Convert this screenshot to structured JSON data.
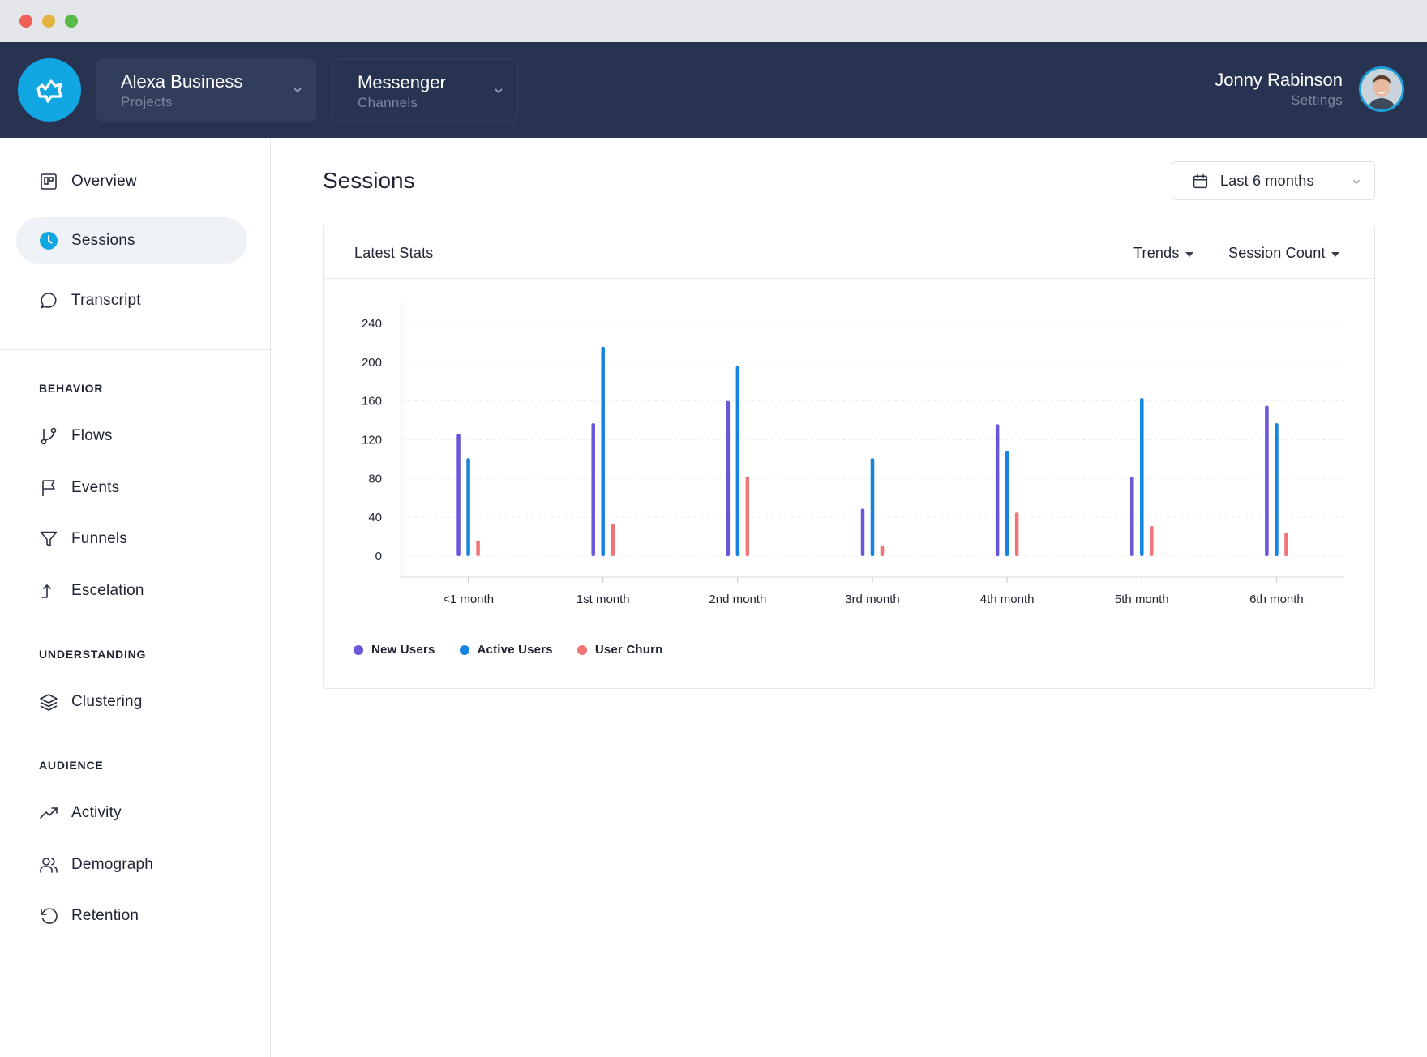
{
  "header": {
    "project": {
      "title": "Alexa Business",
      "subtitle": "Projects"
    },
    "channel": {
      "title": "Messenger",
      "subtitle": "Channels"
    },
    "user": {
      "name": "Jonny Rabinson",
      "subtitle": "Settings"
    }
  },
  "sidebar": {
    "top_items": [
      {
        "label": "Overview",
        "icon": "overview-icon"
      },
      {
        "label": "Sessions",
        "icon": "clock-icon",
        "active": true
      },
      {
        "label": "Transcript",
        "icon": "chat-bubble-icon"
      }
    ],
    "sections": [
      {
        "title": "BEHAVIOR",
        "items": [
          {
            "label": "Flows",
            "icon": "branch-icon"
          },
          {
            "label": "Events",
            "icon": "flag-icon"
          },
          {
            "label": "Funnels",
            "icon": "funnel-icon"
          },
          {
            "label": "Escelation",
            "icon": "escalation-arrow-icon"
          }
        ]
      },
      {
        "title": "UNDERSTANDING",
        "items": [
          {
            "label": "Clustering",
            "icon": "layers-icon"
          }
        ]
      },
      {
        "title": "AUDIENCE",
        "items": [
          {
            "label": "Activity",
            "icon": "trending-up-icon"
          },
          {
            "label": "Demograph",
            "icon": "users-icon"
          },
          {
            "label": "Retention",
            "icon": "rotate-ccw-icon"
          }
        ]
      }
    ]
  },
  "main": {
    "title": "Sessions",
    "date_range": "Last 6 months",
    "card": {
      "title": "Latest Stats",
      "trends_label": "Trends",
      "metric_label": "Session Count"
    }
  },
  "colors": {
    "header_bg": "#283352",
    "accent": "#11a7e3",
    "new_users": "#6b55d9",
    "active_users": "#1484e0",
    "user_churn": "#f07478"
  },
  "chart_data": {
    "type": "bar",
    "categories": [
      "<1 month",
      "1st month",
      "2nd month",
      "3rd month",
      "4th month",
      "5th month",
      "6th month"
    ],
    "series": [
      {
        "name": "New Users",
        "values": [
          126,
          137,
          160,
          49,
          136,
          82,
          155
        ]
      },
      {
        "name": "Active Users",
        "values": [
          101,
          216,
          196,
          101,
          108,
          163,
          137
        ]
      },
      {
        "name": "User Churn",
        "values": [
          16,
          33,
          82,
          11,
          45,
          31,
          24
        ]
      }
    ],
    "yticks": [
      0,
      40,
      80,
      120,
      160,
      200,
      240
    ],
    "ylim": [
      0,
      240
    ],
    "grid": true,
    "legend": "bottom-left"
  }
}
